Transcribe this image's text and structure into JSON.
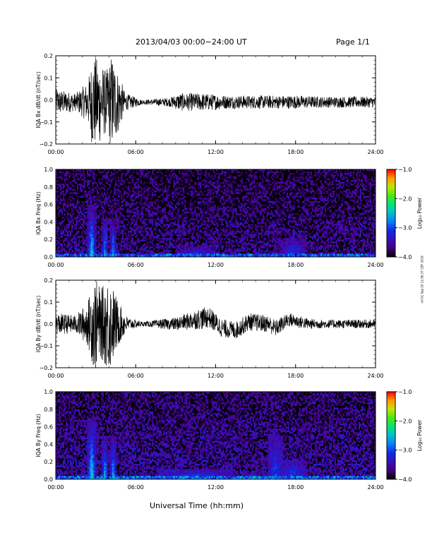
{
  "header": {
    "date_range": "2013/04/03  00:00−24:00 UT",
    "page": "Page 1/1"
  },
  "x_axis_label": "Universal Time (hh:mm)",
  "timestamp": "rnf 01 Sep 20 12:36:37 CDT 2019",
  "colorbar": {
    "label": "Log₁₀ Power",
    "ticks": [
      "−1.0",
      "−2.0",
      "−3.0",
      "−4.0"
    ],
    "range": [
      -4.0,
      -1.0
    ]
  },
  "chart_data": [
    {
      "type": "line",
      "ylabel": "IQA Bx dB/dt (nT/sec)",
      "xlim": [
        0,
        24
      ],
      "ylim": [
        -0.2,
        0.2
      ],
      "x_ticks": [
        "00:00",
        "06:00",
        "12:00",
        "18:00",
        "24:00"
      ],
      "y_ticks": [
        "0.2",
        "0.1",
        "0.0",
        "−0.1",
        "−0.2"
      ],
      "envelope": [
        {
          "t": 0,
          "amp": 0.06
        },
        {
          "t": 1.5,
          "amp": 0.04
        },
        {
          "t": 2.4,
          "amp": 0.09
        },
        {
          "t": 2.8,
          "amp": 0.22
        },
        {
          "t": 3.4,
          "amp": 0.18
        },
        {
          "t": 3.8,
          "amp": 0.14
        },
        {
          "t": 4.2,
          "amp": 0.22
        },
        {
          "t": 4.8,
          "amp": 0.12
        },
        {
          "t": 5.2,
          "amp": 0.04
        },
        {
          "t": 6.5,
          "amp": 0.01
        },
        {
          "t": 8.5,
          "amp": 0.02
        },
        {
          "t": 9.3,
          "amp": 0.04
        },
        {
          "t": 11,
          "amp": 0.04
        },
        {
          "t": 13,
          "amp": 0.03
        },
        {
          "t": 16,
          "amp": 0.03
        },
        {
          "t": 18,
          "amp": 0.03
        },
        {
          "t": 20,
          "amp": 0.025
        },
        {
          "t": 24,
          "amp": 0.025
        }
      ],
      "baseline": [
        {
          "t": 0,
          "v": -0.01
        },
        {
          "t": 24,
          "v": -0.01
        }
      ]
    },
    {
      "type": "heatmap",
      "ylabel": "IQA Bx Freq (Hz)",
      "xlim": [
        0,
        24
      ],
      "ylim": [
        0,
        1.0
      ],
      "x_ticks": [
        "00:00",
        "06:00",
        "12:00",
        "18:00",
        "24:00"
      ],
      "y_ticks": [
        "1.0",
        "0.8",
        "0.6",
        "0.4",
        "0.2",
        "0.0"
      ],
      "background_log_power": -3.7,
      "bursts": [
        {
          "t": 2.7,
          "width": 0.35,
          "fmax": 0.6,
          "peak": -2.2
        },
        {
          "t": 3.7,
          "width": 0.25,
          "fmax": 0.45,
          "peak": -2.4
        },
        {
          "t": 4.3,
          "width": 0.25,
          "fmax": 0.45,
          "peak": -2.5
        },
        {
          "t": 10.5,
          "width": 1.5,
          "fmax": 0.12,
          "peak": -2.8
        },
        {
          "t": 17.8,
          "width": 1.0,
          "fmax": 0.22,
          "peak": -2.9
        }
      ]
    },
    {
      "type": "line",
      "ylabel": "IQA By dB/dt (nT/sec)",
      "xlim": [
        0,
        24
      ],
      "ylim": [
        -0.2,
        0.2
      ],
      "x_ticks": [
        "00:00",
        "06:00",
        "12:00",
        "18:00",
        "24:00"
      ],
      "y_ticks": [
        "0.2",
        "0.1",
        "0.0",
        "−0.1",
        "−0.2"
      ],
      "envelope": [
        {
          "t": 0,
          "amp": 0.05
        },
        {
          "t": 1.5,
          "amp": 0.04
        },
        {
          "t": 2.4,
          "amp": 0.1
        },
        {
          "t": 2.9,
          "amp": 0.22
        },
        {
          "t": 3.4,
          "amp": 0.16
        },
        {
          "t": 4.0,
          "amp": 0.22
        },
        {
          "t": 4.7,
          "amp": 0.1
        },
        {
          "t": 5.4,
          "amp": 0.03
        },
        {
          "t": 6.5,
          "amp": 0.01
        },
        {
          "t": 9,
          "amp": 0.03
        },
        {
          "t": 11,
          "amp": 0.05
        },
        {
          "t": 13,
          "amp": 0.04
        },
        {
          "t": 16,
          "amp": 0.04
        },
        {
          "t": 18,
          "amp": 0.03
        },
        {
          "t": 20,
          "amp": 0.02
        },
        {
          "t": 24,
          "amp": 0.02
        }
      ],
      "baseline": [
        {
          "t": 0,
          "v": 0.0
        },
        {
          "t": 6,
          "v": 0.0
        },
        {
          "t": 9,
          "v": 0.0
        },
        {
          "t": 10.5,
          "v": 0.02
        },
        {
          "t": 11.5,
          "v": 0.03
        },
        {
          "t": 12.5,
          "v": -0.02
        },
        {
          "t": 13.5,
          "v": -0.03
        },
        {
          "t": 14.5,
          "v": 0.01
        },
        {
          "t": 16,
          "v": 0.0
        },
        {
          "t": 16.5,
          "v": -0.02
        },
        {
          "t": 17.5,
          "v": 0.02
        },
        {
          "t": 19,
          "v": 0.0
        },
        {
          "t": 24,
          "v": 0.0
        }
      ]
    },
    {
      "type": "heatmap",
      "ylabel": "IQA By Freq (Hz)",
      "xlim": [
        0,
        24
      ],
      "ylim": [
        0,
        1.0
      ],
      "x_ticks": [
        "00:00",
        "06:00",
        "12:00",
        "18:00",
        "24:00"
      ],
      "y_ticks": [
        "1.0",
        "0.8",
        "0.6",
        "0.4",
        "0.2",
        "0.0"
      ],
      "background_log_power": -3.6,
      "bursts": [
        {
          "t": 2.7,
          "width": 0.35,
          "fmax": 0.7,
          "peak": -2.2
        },
        {
          "t": 3.7,
          "width": 0.25,
          "fmax": 0.5,
          "peak": -2.4
        },
        {
          "t": 4.3,
          "width": 0.25,
          "fmax": 0.5,
          "peak": -2.5
        },
        {
          "t": 10.5,
          "width": 3.0,
          "fmax": 0.12,
          "peak": -2.8
        },
        {
          "t": 16.5,
          "width": 0.6,
          "fmax": 0.5,
          "peak": -2.9
        },
        {
          "t": 17.8,
          "width": 1.0,
          "fmax": 0.22,
          "peak": -2.9
        }
      ]
    }
  ]
}
